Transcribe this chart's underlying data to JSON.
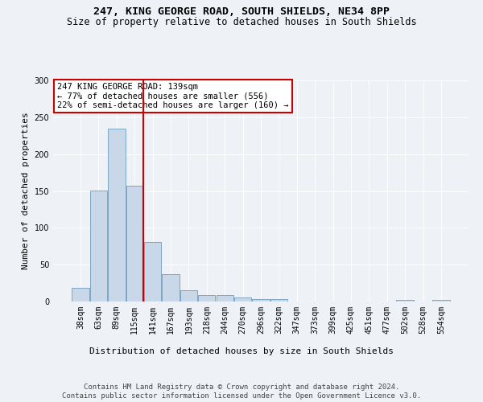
{
  "title1": "247, KING GEORGE ROAD, SOUTH SHIELDS, NE34 8PP",
  "title2": "Size of property relative to detached houses in South Shields",
  "xlabel": "Distribution of detached houses by size in South Shields",
  "ylabel": "Number of detached properties",
  "categories": [
    "38sqm",
    "63sqm",
    "89sqm",
    "115sqm",
    "141sqm",
    "167sqm",
    "193sqm",
    "218sqm",
    "244sqm",
    "270sqm",
    "296sqm",
    "322sqm",
    "347sqm",
    "373sqm",
    "399sqm",
    "425sqm",
    "451sqm",
    "477sqm",
    "502sqm",
    "528sqm",
    "554sqm"
  ],
  "values": [
    19,
    151,
    235,
    157,
    81,
    37,
    15,
    9,
    9,
    5,
    3,
    3,
    0,
    0,
    0,
    0,
    0,
    0,
    2,
    0,
    2
  ],
  "bar_color": "#c8d8e8",
  "bar_edge_color": "#5a8db5",
  "vline_color": "#cc0000",
  "vline_index": 3.5,
  "annotation_text": "247 KING GEORGE ROAD: 139sqm\n← 77% of detached houses are smaller (556)\n22% of semi-detached houses are larger (160) →",
  "annotation_box_facecolor": "#ffffff",
  "annotation_box_edgecolor": "#cc0000",
  "ylim": [
    0,
    300
  ],
  "yticks": [
    0,
    50,
    100,
    150,
    200,
    250,
    300
  ],
  "footer": "Contains HM Land Registry data © Crown copyright and database right 2024.\nContains public sector information licensed under the Open Government Licence v3.0.",
  "bg_color": "#eef2f7",
  "plot_bg_color": "#eef2f7",
  "grid_color": "#ffffff",
  "title1_fontsize": 9.5,
  "title2_fontsize": 8.5,
  "ylabel_fontsize": 8,
  "xlabel_fontsize": 8,
  "tick_fontsize": 7,
  "ann_fontsize": 7.5,
  "footer_fontsize": 6.5
}
